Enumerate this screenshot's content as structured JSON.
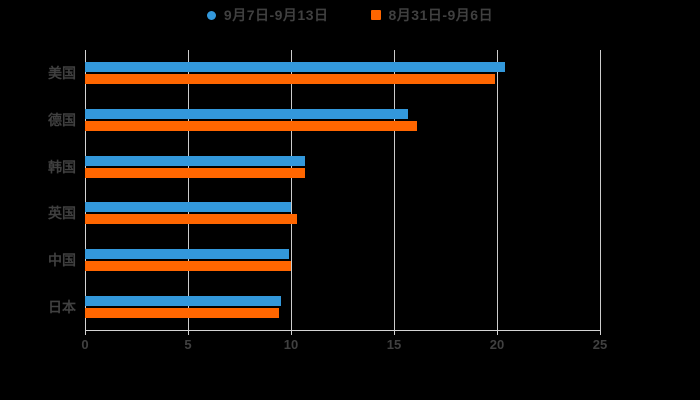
{
  "legend": {
    "items": [
      {
        "label": "9月7日-9月13日",
        "color": "#3398db",
        "marker": "circle-icon"
      },
      {
        "label": "8月31日-9月6日",
        "color": "#ff6600",
        "marker": "square-icon"
      }
    ]
  },
  "chart_data": {
    "type": "bar",
    "orientation": "horizontal",
    "title": "",
    "xlabel": "",
    "ylabel": "",
    "categories": [
      "美国",
      "德国",
      "韩国",
      "英国",
      "中国",
      "日本"
    ],
    "series": [
      {
        "name": "9月7日-9月13日",
        "color": "#3398db",
        "values": [
          20.4,
          15.7,
          10.7,
          10.0,
          9.9,
          9.5
        ]
      },
      {
        "name": "8月31日-9月6日",
        "color": "#ff6600",
        "values": [
          19.9,
          16.1,
          10.7,
          10.3,
          10.0,
          9.4
        ]
      }
    ],
    "xlim": [
      0,
      25
    ],
    "x_ticks": [
      0,
      5,
      10,
      15,
      20,
      25
    ],
    "grid": true,
    "legend_position": "top-center",
    "colors": {
      "background": "#000000",
      "grid_line": "#cccccc",
      "axis_line": "#d4d4d4",
      "text": "#404040"
    }
  }
}
